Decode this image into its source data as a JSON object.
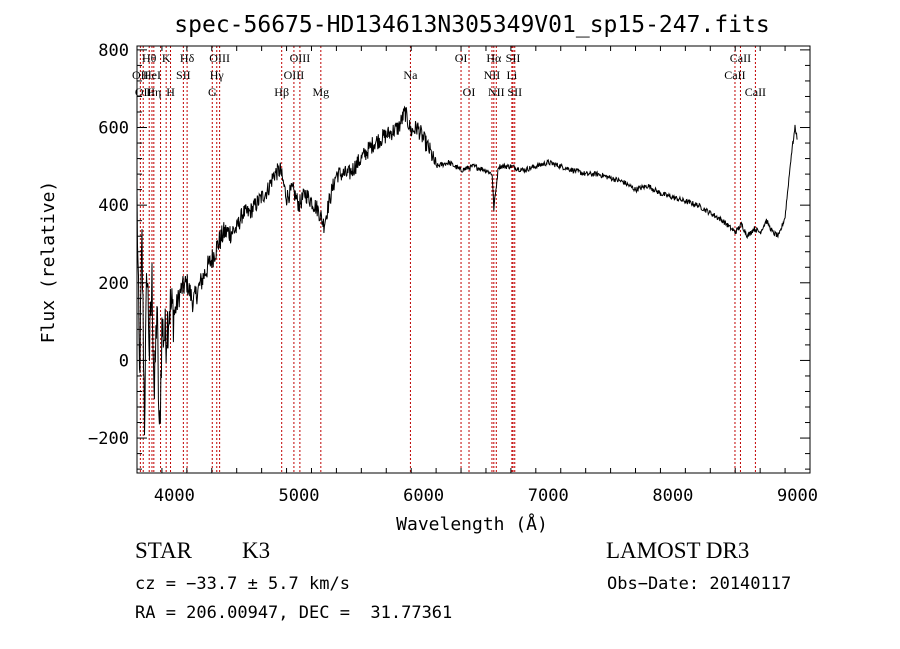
{
  "chart_data": {
    "type": "line",
    "title": "spec-56675-HD134613N305349V01_sp15-247.fits",
    "xlabel": "Wavelength (Å)",
    "ylabel": "Flux (relative)",
    "xlim": [
      3700,
      9100
    ],
    "ylim": [
      -290,
      810
    ],
    "xticks": [
      4000,
      5000,
      6000,
      7000,
      8000,
      9000
    ],
    "yticks": [
      -200,
      0,
      200,
      400,
      600,
      800
    ],
    "grid": false,
    "series": [
      {
        "x": [
          3700,
          3720,
          3740,
          3760,
          3780,
          3800,
          3820,
          3840,
          3860,
          3880,
          3900,
          3930,
          3960,
          4000,
          4050,
          4100,
          4150,
          4200,
          4250,
          4300,
          4350,
          4400,
          4450,
          4500,
          4550,
          4600,
          4650,
          4700,
          4750,
          4800,
          4850,
          4900,
          4950,
          5000,
          5050,
          5100,
          5150,
          5200,
          5250,
          5300,
          5400,
          5500,
          5600,
          5700,
          5800,
          5850,
          5900,
          5950,
          6000,
          6050,
          6100,
          6200,
          6300,
          6400,
          6500,
          6550,
          6563,
          6600,
          6700,
          6800,
          6900,
          7000,
          7100,
          7200,
          7300,
          7400,
          7500,
          7600,
          7700,
          7800,
          7900,
          8000,
          8100,
          8200,
          8300,
          8400,
          8500,
          8550,
          8600,
          8650,
          8700,
          8750,
          8800,
          8850,
          8900,
          8950,
          8980,
          9000
        ],
        "y": [
          420,
          -50,
          300,
          -150,
          250,
          20,
          200,
          -100,
          150,
          -220,
          80,
          60,
          140,
          120,
          180,
          200,
          150,
          190,
          230,
          260,
          300,
          330,
          330,
          340,
          380,
          380,
          400,
          420,
          440,
          480,
          490,
          420,
          440,
          400,
          430,
          410,
          390,
          350,
          420,
          480,
          480,
          520,
          560,
          580,
          600,
          640,
          590,
          600,
          570,
          540,
          500,
          510,
          490,
          500,
          490,
          480,
          390,
          500,
          500,
          490,
          500,
          510,
          500,
          490,
          480,
          480,
          470,
          460,
          440,
          450,
          430,
          420,
          410,
          400,
          380,
          360,
          330,
          350,
          320,
          340,
          330,
          360,
          330,
          320,
          370,
          530,
          600,
          570
        ]
      }
    ],
    "lines": [
      {
        "x": 3727,
        "label": "OII",
        "row": 1
      },
      {
        "x": 3750,
        "label": "OII",
        "row": 2
      },
      {
        "x": 3798,
        "label": "Hθ",
        "row": 0
      },
      {
        "x": 3820,
        "label": "HeI",
        "row": 1
      },
      {
        "x": 3835,
        "label": "Hη",
        "row": 2
      },
      {
        "x": 3889,
        "label": "",
        "row": 2
      },
      {
        "x": 3934,
        "label": "K",
        "row": 0
      },
      {
        "x": 3969,
        "label": "H",
        "row": 2
      },
      {
        "x": 4072,
        "label": "SII",
        "row": 1
      },
      {
        "x": 4102,
        "label": "Hδ",
        "row": 0
      },
      {
        "x": 4304,
        "label": "G",
        "row": 2
      },
      {
        "x": 4340,
        "label": "Hγ",
        "row": 1
      },
      {
        "x": 4363,
        "label": "OIII",
        "row": 0
      },
      {
        "x": 4861,
        "label": "Hβ",
        "row": 2
      },
      {
        "x": 4959,
        "label": "OIII",
        "row": 1
      },
      {
        "x": 5007,
        "label": "OIII",
        "row": 0
      },
      {
        "x": 5175,
        "label": "Mg",
        "row": 2
      },
      {
        "x": 5894,
        "label": "Na",
        "row": 1
      },
      {
        "x": 6300,
        "label": "OI",
        "row": 0
      },
      {
        "x": 6364,
        "label": "OI",
        "row": 2
      },
      {
        "x": 6548,
        "label": "NII",
        "row": 1
      },
      {
        "x": 6563,
        "label": "Hα",
        "row": 0
      },
      {
        "x": 6583,
        "label": "NII",
        "row": 2
      },
      {
        "x": 6708,
        "label": "Li",
        "row": 1
      },
      {
        "x": 6717,
        "label": "SII",
        "row": 0
      },
      {
        "x": 6731,
        "label": "SII",
        "row": 2
      },
      {
        "x": 8498,
        "label": "CaII",
        "row": 1
      },
      {
        "x": 8542,
        "label": "CaII",
        "row": 0
      },
      {
        "x": 8662,
        "label": "CaII",
        "row": 2
      }
    ]
  },
  "footer": {
    "class": "STAR",
    "subclass": "K3",
    "cz": "cz = −33.7 ± 5.7 km/s",
    "coords": "RA = 206.00947, DEC =  31.77361",
    "survey": "LAMOST DR3",
    "obs_date": "Obs−Date: 20140117"
  },
  "colors": {
    "line_marker": "#c00000",
    "spectrum": "#000000",
    "axes": "#000000"
  }
}
